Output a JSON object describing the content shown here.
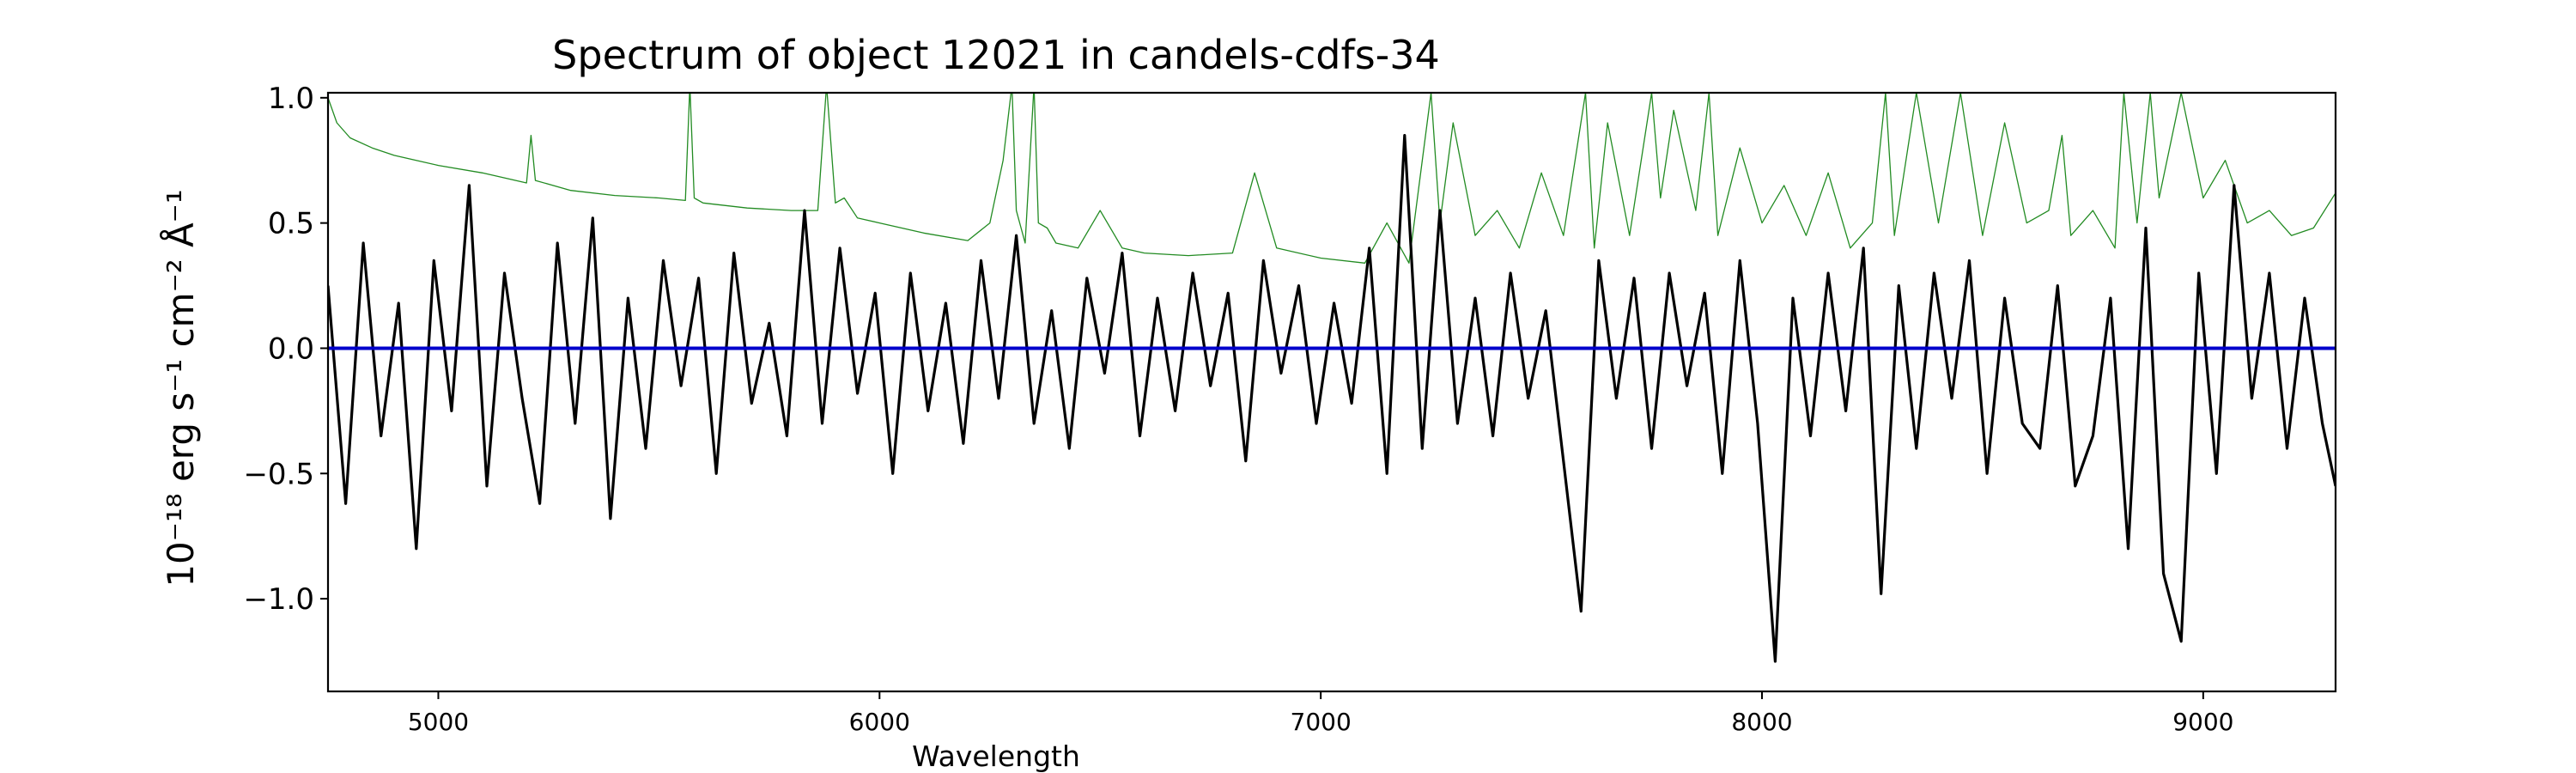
{
  "chart_data": {
    "type": "line",
    "title": "Spectrum of object 12021 in candels-cdfs-34",
    "xlabel": "Wavelength",
    "ylabel": "10⁻¹⁸ erg s⁻¹ cm⁻² Å⁻¹",
    "xlim": [
      4750,
      9300
    ],
    "ylim": [
      -1.37,
      1.02
    ],
    "x_ticks": [
      5000,
      6000,
      7000,
      8000,
      9000
    ],
    "y_ticks": [
      1.0,
      0.5,
      0.0,
      -0.5,
      -1.0
    ],
    "y_tick_labels": [
      "1.0",
      "0.5",
      "0.0",
      "−0.5",
      "−1.0"
    ],
    "grid": false,
    "series": [
      {
        "role": "flux",
        "color": "#000000",
        "x": [
          4750,
          4790,
          4830,
          4870,
          4910,
          4950,
          4990,
          5030,
          5070,
          5110,
          5150,
          5190,
          5230,
          5270,
          5310,
          5350,
          5390,
          5430,
          5470,
          5510,
          5550,
          5590,
          5630,
          5670,
          5710,
          5750,
          5790,
          5830,
          5870,
          5910,
          5950,
          5990,
          6030,
          6070,
          6110,
          6150,
          6190,
          6230,
          6270,
          6310,
          6350,
          6390,
          6430,
          6470,
          6510,
          6550,
          6590,
          6630,
          6670,
          6710,
          6750,
          6790,
          6830,
          6870,
          6910,
          6950,
          6990,
          7030,
          7070,
          7110,
          7150,
          7190,
          7230,
          7270,
          7310,
          7350,
          7390,
          7430,
          7470,
          7510,
          7550,
          7590,
          7630,
          7670,
          7710,
          7750,
          7790,
          7830,
          7870,
          7910,
          7950,
          7990,
          8030,
          8070,
          8110,
          8150,
          8190,
          8230,
          8270,
          8310,
          8350,
          8390,
          8430,
          8470,
          8510,
          8550,
          8590,
          8630,
          8670,
          8710,
          8750,
          8790,
          8830,
          8870,
          8910,
          8950,
          8990,
          9030,
          9070,
          9110,
          9150,
          9190,
          9230,
          9270,
          9300
        ],
        "y": [
          0.25,
          -0.62,
          0.42,
          -0.35,
          0.18,
          -0.8,
          0.35,
          -0.25,
          0.65,
          -0.55,
          0.3,
          -0.2,
          -0.62,
          0.42,
          -0.3,
          0.52,
          -0.68,
          0.2,
          -0.4,
          0.35,
          -0.15,
          0.28,
          -0.5,
          0.38,
          -0.22,
          0.1,
          -0.35,
          0.55,
          -0.3,
          0.4,
          -0.18,
          0.22,
          -0.5,
          0.3,
          -0.25,
          0.18,
          -0.38,
          0.35,
          -0.2,
          0.45,
          -0.3,
          0.15,
          -0.4,
          0.28,
          -0.1,
          0.38,
          -0.35,
          0.2,
          -0.25,
          0.3,
          -0.15,
          0.22,
          -0.45,
          0.35,
          -0.1,
          0.25,
          -0.3,
          0.18,
          -0.22,
          0.4,
          -0.5,
          0.85,
          -0.4,
          0.55,
          -0.3,
          0.2,
          -0.35,
          0.3,
          -0.2,
          0.15,
          -0.45,
          -1.05,
          0.35,
          -0.2,
          0.28,
          -0.4,
          0.3,
          -0.15,
          0.22,
          -0.5,
          0.35,
          -0.3,
          -1.25,
          0.2,
          -0.35,
          0.3,
          -0.25,
          0.4,
          -0.98,
          0.25,
          -0.4,
          0.3,
          -0.2,
          0.35,
          -0.5,
          0.2,
          -0.3,
          -0.4,
          0.25,
          -0.55,
          -0.35,
          0.2,
          -0.8,
          0.48,
          -0.9,
          -1.17,
          0.3,
          -0.5,
          0.65,
          -0.2,
          0.3,
          -0.4,
          0.2,
          -0.3,
          -0.55
        ]
      },
      {
        "role": "error",
        "color": "#228B22",
        "x": [
          4750,
          4770,
          4800,
          4850,
          4900,
          4950,
          5000,
          5100,
          5200,
          5210,
          5220,
          5300,
          5400,
          5500,
          5560,
          5570,
          5580,
          5600,
          5700,
          5800,
          5860,
          5880,
          5900,
          5920,
          5950,
          6000,
          6100,
          6200,
          6250,
          6280,
          6300,
          6310,
          6330,
          6350,
          6360,
          6380,
          6400,
          6450,
          6500,
          6550,
          6600,
          6700,
          6800,
          6850,
          6900,
          7000,
          7100,
          7150,
          7200,
          7250,
          7270,
          7300,
          7350,
          7400,
          7450,
          7500,
          7550,
          7600,
          7620,
          7650,
          7700,
          7750,
          7770,
          7800,
          7850,
          7880,
          7900,
          7950,
          8000,
          8050,
          8100,
          8150,
          8200,
          8250,
          8280,
          8300,
          8350,
          8400,
          8450,
          8500,
          8550,
          8600,
          8650,
          8680,
          8700,
          8750,
          8800,
          8820,
          8850,
          8880,
          8900,
          8950,
          9000,
          9050,
          9100,
          9150,
          9200,
          9250,
          9300
        ],
        "y": [
          1.0,
          0.9,
          0.84,
          0.8,
          0.77,
          0.75,
          0.73,
          0.7,
          0.66,
          0.85,
          0.67,
          0.63,
          0.61,
          0.6,
          0.59,
          1.05,
          0.6,
          0.58,
          0.56,
          0.55,
          0.55,
          1.05,
          0.58,
          0.6,
          0.52,
          0.5,
          0.46,
          0.43,
          0.5,
          0.75,
          1.05,
          0.55,
          0.42,
          1.05,
          0.5,
          0.48,
          0.42,
          0.4,
          0.55,
          0.4,
          0.38,
          0.37,
          0.38,
          0.7,
          0.4,
          0.36,
          0.34,
          0.5,
          0.34,
          1.02,
          0.5,
          0.9,
          0.45,
          0.55,
          0.4,
          0.7,
          0.45,
          1.02,
          0.4,
          0.9,
          0.45,
          1.02,
          0.6,
          0.95,
          0.55,
          1.02,
          0.45,
          0.8,
          0.5,
          0.65,
          0.45,
          0.7,
          0.4,
          0.5,
          1.02,
          0.45,
          1.02,
          0.5,
          1.02,
          0.45,
          0.9,
          0.5,
          0.55,
          0.85,
          0.45,
          0.55,
          0.4,
          1.02,
          0.5,
          1.02,
          0.6,
          1.02,
          0.6,
          0.75,
          0.5,
          0.55,
          0.45,
          0.48,
          0.62
        ]
      },
      {
        "role": "model",
        "color": "#0000CC",
        "x": [
          4750,
          9300
        ],
        "y": [
          0.0,
          0.0
        ]
      }
    ]
  }
}
